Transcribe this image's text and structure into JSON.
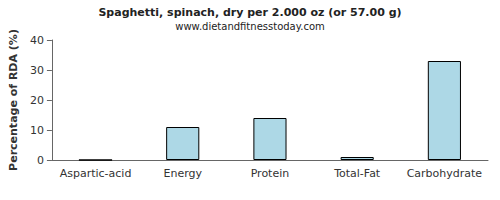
{
  "chart_data": {
    "type": "bar",
    "title": "Spaghetti, spinach, dry per 2.000 oz (or 57.00 g)",
    "subtitle": "www.dietandfitnesstoday.com",
    "y_label": "Percentage of RDA (%)",
    "categories": [
      "Aspartic-acid",
      "Energy",
      "Protein",
      "Total-Fat",
      "Carbohydrate"
    ],
    "values": [
      0,
      11,
      14,
      1,
      33
    ],
    "color": "#add8e6",
    "ylim": [
      0,
      40
    ],
    "yticks": [
      0,
      10,
      20,
      30,
      40
    ],
    "grid": false
  }
}
